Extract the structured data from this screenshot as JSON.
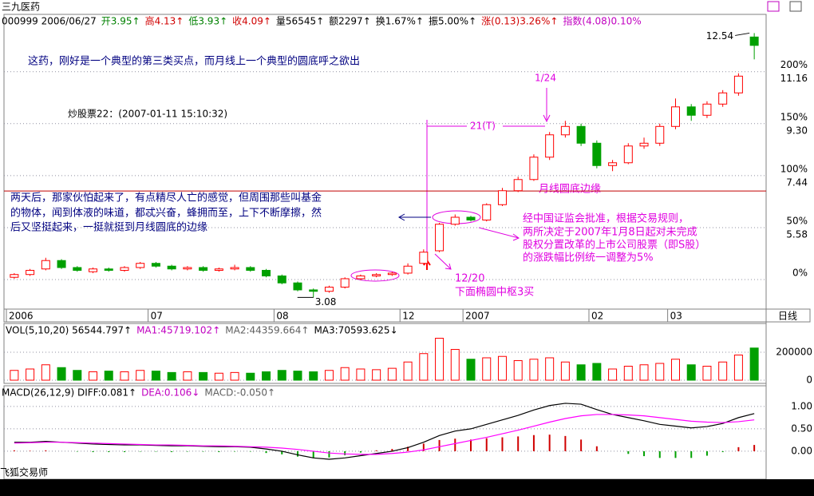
{
  "header": {
    "title": "三九医药",
    "quote": [
      {
        "text": "000999 2006/06/27",
        "color": "#000000"
      },
      {
        "text": "开3.95↑",
        "color": "#008000"
      },
      {
        "text": "高4.13↑",
        "color": "#d00000"
      },
      {
        "text": "低3.93↑",
        "color": "#008000"
      },
      {
        "text": "收4.09↑",
        "color": "#d00000"
      },
      {
        "text": "量56545↑",
        "color": "#000000"
      },
      {
        "text": "额2297↑",
        "color": "#000000"
      },
      {
        "text": "换1.67%↑",
        "color": "#000000"
      },
      {
        "text": "振5.00%↑",
        "color": "#000000"
      },
      {
        "text": "涨(0.13)3.26%↑",
        "color": "#d00000"
      },
      {
        "text": "指数(4.08)0.10%",
        "color": "#c000c0"
      }
    ]
  },
  "chart_data": [
    {
      "type": "candlestick",
      "categories": [
        "2006",
        null,
        null,
        null,
        null,
        null,
        null,
        null,
        null,
        "07",
        null,
        null,
        null,
        null,
        null,
        null,
        null,
        "08",
        null,
        null,
        null,
        null,
        null,
        null,
        null,
        "12",
        null,
        null,
        null,
        "2007",
        null,
        null,
        null,
        null,
        null,
        null,
        null,
        "02",
        null,
        null,
        null,
        null,
        "03",
        null,
        null,
        null,
        null,
        null
      ],
      "open": [
        3.8,
        3.9,
        4.1,
        4.4,
        4.15,
        4.0,
        4.1,
        4.05,
        4.15,
        4.3,
        4.2,
        4.1,
        4.15,
        4.05,
        4.1,
        4.15,
        4.05,
        3.85,
        3.6,
        3.35,
        3.3,
        3.45,
        3.75,
        3.85,
        3.9,
        3.95,
        4.3,
        4.75,
        5.7,
        5.95,
        5.85,
        6.4,
        6.9,
        7.3,
        8.1,
        8.9,
        9.2,
        8.6,
        7.8,
        7.9,
        8.5,
        8.6,
        9.2,
        9.9,
        9.6,
        10.0,
        10.4,
        12.4
      ],
      "close": [
        3.9,
        4.05,
        4.4,
        4.15,
        4.05,
        4.1,
        4.05,
        4.15,
        4.3,
        4.2,
        4.1,
        4.15,
        4.05,
        4.1,
        4.15,
        4.05,
        3.85,
        3.6,
        3.35,
        3.3,
        3.45,
        3.75,
        3.85,
        3.9,
        3.95,
        4.2,
        4.7,
        5.7,
        5.95,
        5.85,
        6.4,
        6.9,
        7.3,
        8.1,
        8.9,
        9.2,
        8.6,
        7.8,
        7.9,
        8.5,
        8.6,
        9.2,
        9.9,
        9.6,
        10.0,
        10.4,
        11.0,
        12.1
      ],
      "high": [
        3.95,
        4.1,
        4.5,
        4.45,
        4.2,
        4.15,
        4.15,
        4.2,
        4.35,
        4.35,
        4.25,
        4.2,
        4.2,
        4.15,
        4.25,
        4.2,
        4.1,
        3.9,
        3.65,
        3.4,
        3.5,
        3.8,
        3.9,
        3.95,
        4.0,
        4.3,
        4.8,
        5.75,
        6.05,
        6.0,
        6.45,
        7.0,
        7.4,
        8.2,
        9.0,
        9.4,
        9.3,
        8.7,
        8.0,
        8.6,
        8.8,
        9.3,
        10.2,
        10.0,
        10.1,
        10.5,
        11.1,
        12.54
      ],
      "low": [
        3.75,
        3.85,
        4.05,
        4.1,
        4.0,
        3.95,
        4.0,
        4.0,
        4.1,
        4.15,
        4.05,
        4.05,
        4.0,
        4.0,
        4.05,
        4.0,
        3.8,
        3.55,
        3.3,
        3.08,
        3.25,
        3.4,
        3.7,
        3.8,
        3.85,
        3.9,
        4.25,
        4.7,
        5.65,
        5.8,
        5.8,
        6.35,
        6.85,
        7.25,
        8.0,
        8.8,
        8.5,
        7.7,
        7.6,
        7.85,
        8.4,
        8.5,
        9.1,
        9.4,
        9.5,
        9.9,
        10.3,
        11.6
      ],
      "up_color": "#ff0000",
      "down_color": "#00a000",
      "ylim": [
        2.72,
        13.21
      ],
      "yticks": [
        {
          "value": 3.72,
          "label": "0%"
        },
        {
          "value": 5.58,
          "label": "50%"
        },
        {
          "value": 7.44,
          "label": "100%"
        },
        {
          "value": 9.3,
          "label": "150%"
        },
        {
          "value": 11.16,
          "label": "200%"
        }
      ],
      "price_ticks": [
        5.58,
        7.44,
        {
          "value": 9.3,
          "label": "9.30"
        },
        11.16
      ],
      "max_label": 12.54,
      "min_label": 3.08,
      "edge_level": 6.89,
      "period": "日线",
      "annotations": {
        "intro": "这药，刚好是一个典型的第三类买点，而月线上一个典型的圆底呼之欲出",
        "source": "炒股票22：(2007-01-11 15:10:32)",
        "left_note": [
          "两天后，那家伙怕起来了，有点精尽人亡的感觉，但周围那些叫基金",
          "的物体，闻到体液的味道，都忒兴奋，蜂拥而至，上下不断摩擦，然",
          "后又坚挺起来，一挺就挺到月线圆底的边缘"
        ],
        "right_note": [
          "经中国证监会批准，根据交易规则，",
          "两所决定于2007年1月8日起对未完成",
          "股权分置改革的上市公司股票（即S股）",
          "的涨跌幅比例统一调整为5%"
        ],
        "date_a": "1/24",
        "t_label": "21(T)",
        "edge_label": "月线圆底边缘",
        "date_b": "12/20",
        "pivot_note": "下面椭圆中枢3买"
      }
    },
    {
      "type": "volume",
      "header": [
        {
          "text": "VOL(5,10,20) 56544.797↑",
          "color": "#000000"
        },
        {
          "text": "MA1:45719.102↑",
          "color": "#c000c0"
        },
        {
          "text": "MA2:44359.664↑",
          "color": "#606060"
        },
        {
          "text": "MA3:70593.625↓",
          "color": "#000000"
        }
      ],
      "values": [
        70000,
        80000,
        110000,
        90000,
        70000,
        60000,
        65000,
        60000,
        70000,
        65000,
        55000,
        60000,
        55000,
        50000,
        55000,
        50000,
        60000,
        70000,
        65000,
        60000,
        70000,
        90000,
        80000,
        75000,
        85000,
        130000,
        190000,
        300000,
        220000,
        150000,
        160000,
        170000,
        140000,
        150000,
        160000,
        130000,
        110000,
        120000,
        80000,
        100000,
        110000,
        120000,
        150000,
        110000,
        100000,
        130000,
        180000,
        230000
      ],
      "ylim": [
        0,
        394000
      ],
      "yticks": [
        0,
        200000
      ]
    },
    {
      "type": "macd",
      "header": [
        {
          "text": "MACD(26,12,9) DIFF:0.081↑",
          "color": "#000000"
        },
        {
          "text": "DEA:0.106↓",
          "color": "#c000c0"
        },
        {
          "text": "MACD:-0.050↑",
          "color": "#606060"
        }
      ],
      "diff": [
        0.2,
        0.2,
        0.22,
        0.2,
        0.18,
        0.16,
        0.15,
        0.14,
        0.14,
        0.13,
        0.12,
        0.12,
        0.11,
        0.1,
        0.1,
        0.09,
        0.05,
        0.0,
        -0.08,
        -0.15,
        -0.18,
        -0.15,
        -0.1,
        -0.05,
        0.0,
        0.08,
        0.2,
        0.35,
        0.45,
        0.5,
        0.6,
        0.7,
        0.8,
        0.92,
        1.02,
        1.07,
        1.05,
        0.93,
        0.82,
        0.75,
        0.68,
        0.6,
        0.56,
        0.52,
        0.55,
        0.62,
        0.75,
        0.84
      ],
      "dea": [
        0.18,
        0.19,
        0.2,
        0.2,
        0.19,
        0.18,
        0.17,
        0.16,
        0.15,
        0.14,
        0.14,
        0.13,
        0.12,
        0.12,
        0.11,
        0.1,
        0.09,
        0.07,
        0.04,
        0.0,
        -0.04,
        -0.06,
        -0.07,
        -0.07,
        -0.05,
        -0.02,
        0.03,
        0.1,
        0.17,
        0.24,
        0.31,
        0.39,
        0.47,
        0.56,
        0.65,
        0.73,
        0.79,
        0.82,
        0.82,
        0.81,
        0.79,
        0.75,
        0.71,
        0.67,
        0.65,
        0.64,
        0.66,
        0.7
      ],
      "macd": [
        0.02,
        0.01,
        0.02,
        0,
        -0.01,
        -0.02,
        -0.02,
        -0.02,
        -0.01,
        -0.01,
        -0.02,
        -0.01,
        -0.01,
        -0.02,
        -0.01,
        -0.01,
        -0.04,
        -0.07,
        -0.12,
        -0.15,
        -0.14,
        -0.09,
        -0.03,
        0.02,
        0.05,
        0.1,
        0.17,
        0.25,
        0.28,
        0.26,
        0.29,
        0.31,
        0.33,
        0.36,
        0.37,
        0.34,
        0.26,
        0.11,
        0,
        -0.06,
        -0.11,
        -0.15,
        -0.15,
        -0.15,
        -0.1,
        -0.02,
        0.09,
        0.14
      ],
      "diff_color": "#000000",
      "dea_color": "#ff00ff",
      "up_color": "#d00000",
      "down_color": "#00a000",
      "ylim": [
        -0.59,
        1.39
      ],
      "yticks": [
        {
          "value": 1,
          "label": "1.00"
        },
        {
          "value": 0.5,
          "label": "0.50"
        },
        {
          "value": 0,
          "label": "0.00"
        }
      ]
    }
  ],
  "footer": "飞狐交易师"
}
